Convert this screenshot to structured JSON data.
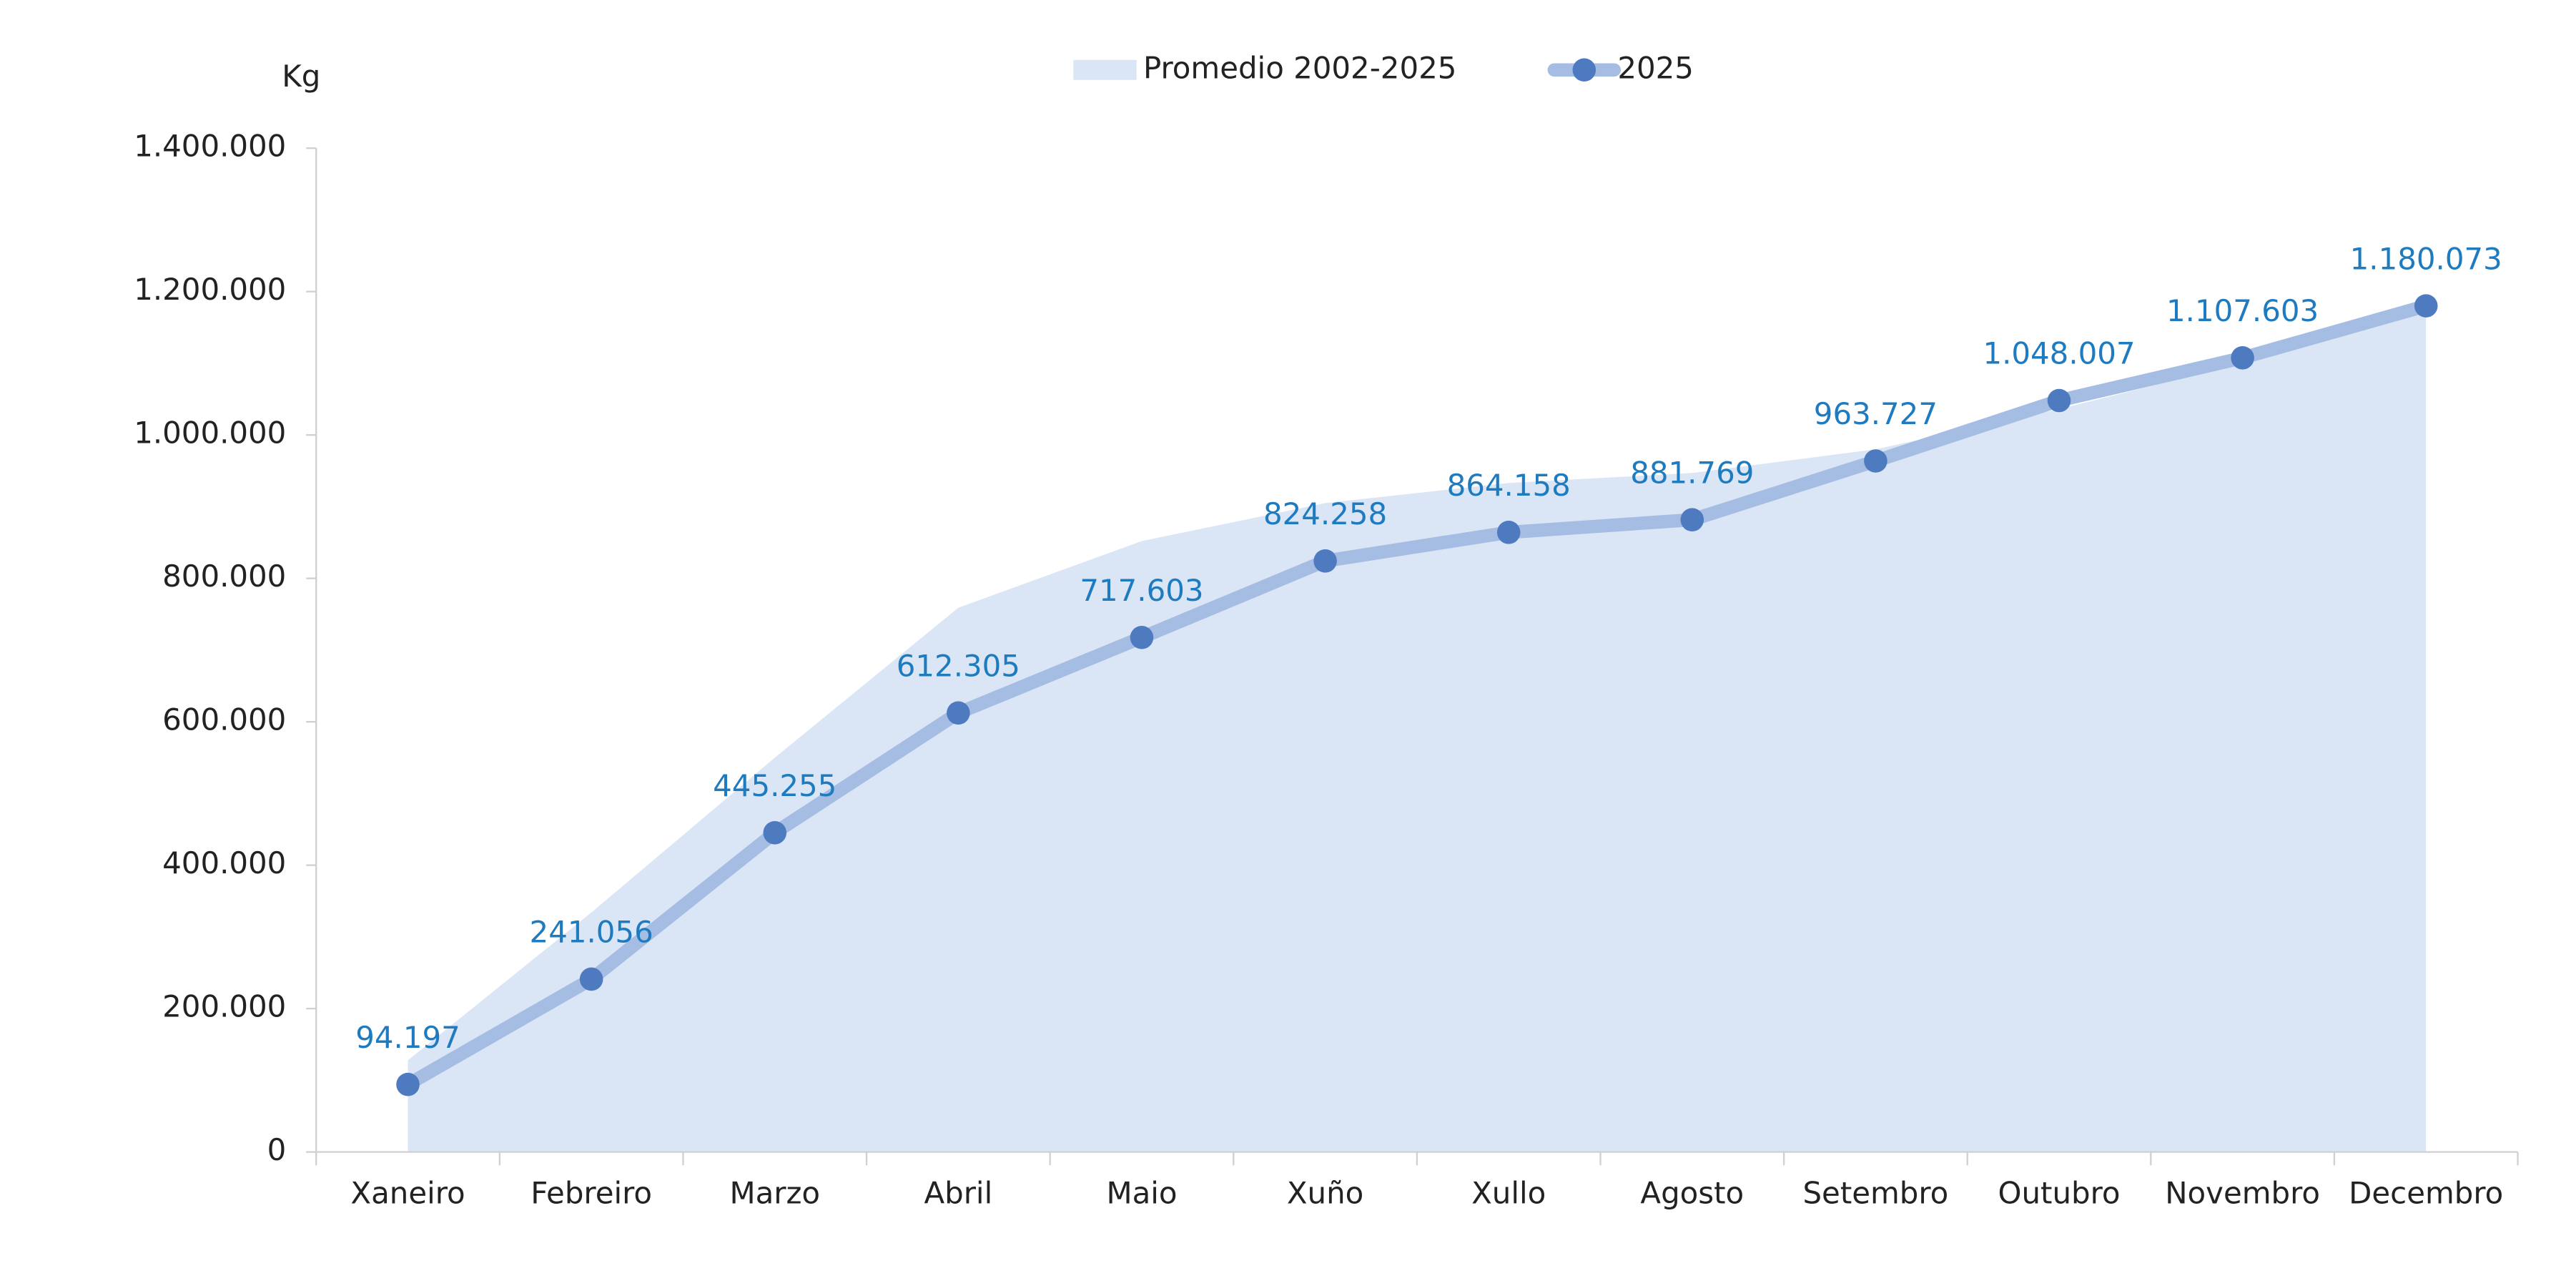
{
  "chart_data": {
    "type": "line",
    "y_label": "Kg",
    "categories": [
      "Xaneiro",
      "Febreiro",
      "Marzo",
      "Abril",
      "Maio",
      "Xuño",
      "Xullo",
      "Agosto",
      "Setembro",
      "Outubro",
      "Novembro",
      "Decembro"
    ],
    "series": [
      {
        "name": "Promedio 2002-2025",
        "kind": "area",
        "color": "#dae5f5",
        "values": [
          128000,
          334000,
          550000,
          759000,
          852000,
          905000,
          933000,
          947000,
          980000,
          1036000,
          1100000,
          1189000
        ]
      },
      {
        "name": "2025",
        "kind": "line",
        "color": "#a5bce3",
        "marker_color": "#4e7bbf",
        "label_color": "#1f7bbf",
        "values": [
          94197,
          241056,
          445255,
          612305,
          717603,
          824258,
          864158,
          881769,
          963727,
          1048007,
          1107603,
          1180073
        ],
        "value_labels": [
          "94.197",
          "241.056",
          "445.255",
          "612.305",
          "717.603",
          "824.258",
          "864.158",
          "881.769",
          "963.727",
          "1.048.007",
          "1.107.603",
          "1.180.073"
        ]
      }
    ],
    "ylim": [
      0,
      1400000
    ],
    "yticks": [
      0,
      {
        "value": 200000,
        "label": "200.000"
      },
      {
        "value": 400000,
        "label": "400.000"
      },
      {
        "value": 600000,
        "label": "600.000"
      },
      {
        "value": 800000,
        "label": "800.000"
      },
      {
        "value": 1000000,
        "label": "1.000.000"
      },
      {
        "value": 1200000,
        "label": "1.200.000"
      },
      {
        "value": 1400000,
        "label": "1.400.000"
      }
    ],
    "grid": false,
    "legend": "top"
  }
}
